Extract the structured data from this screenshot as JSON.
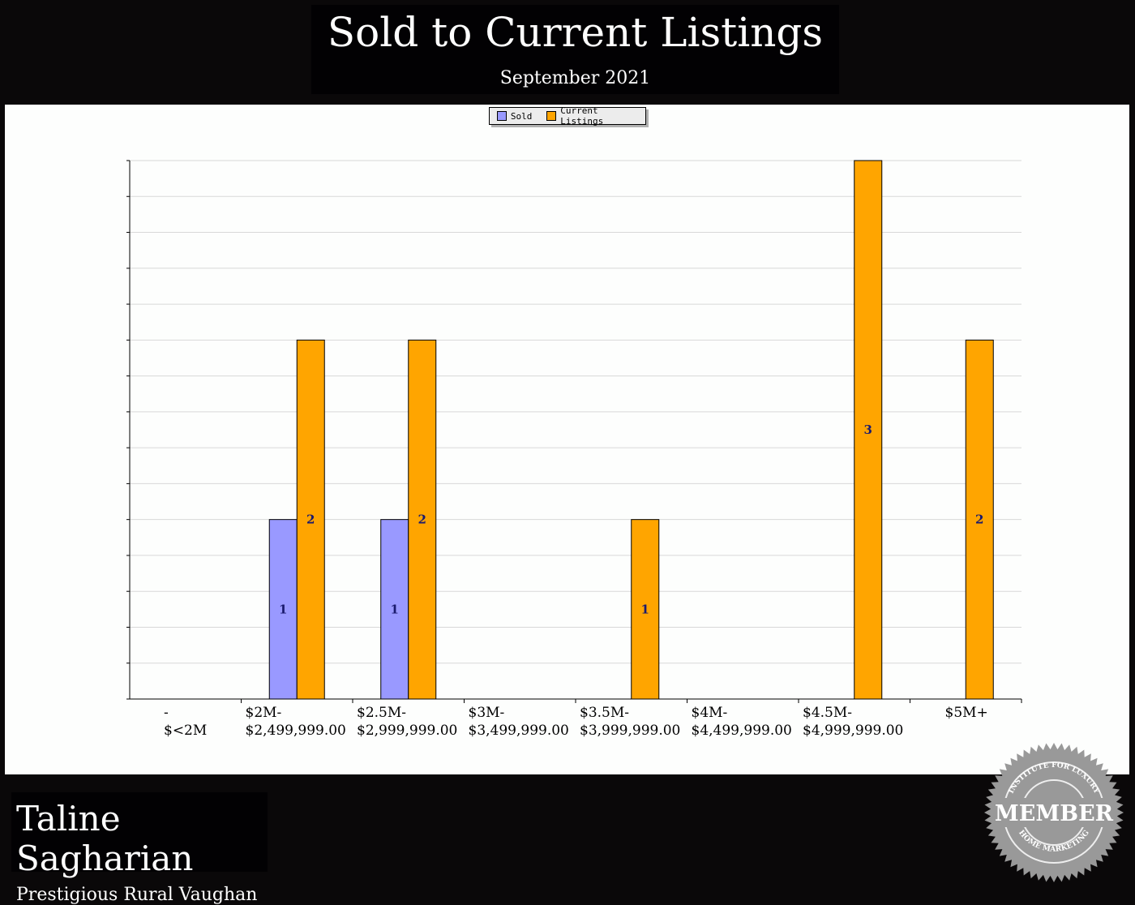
{
  "header": {
    "title": "Sold to Current Listings",
    "subtitle": "September 2021"
  },
  "footer": {
    "agent_name": "Taline Sagharian",
    "area": "Prestigious Rural Vaughan"
  },
  "badge": {
    "top": "INSTITUTE FOR LUXURY",
    "center": "MEMBER",
    "bottom": "HOME MARKETING"
  },
  "chart_data": {
    "type": "bar",
    "title": "Sold to Current Listings",
    "subtitle": "September 2021",
    "categories": [
      [
        "-",
        "$<2M"
      ],
      [
        "$2M-",
        "$2,499,999.00"
      ],
      [
        "$2.5M-",
        "$2,999,999.00"
      ],
      [
        "$3M-",
        "$3,499,999.00"
      ],
      [
        "$3.5M-",
        "$3,999,999.00"
      ],
      [
        "$4M-",
        "$4,499,999.00"
      ],
      [
        "$4.5M-",
        "$4,999,999.00"
      ],
      [
        "$5M+"
      ]
    ],
    "series": [
      {
        "name": "Sold",
        "color": "#9999ff",
        "values": [
          0,
          1,
          1,
          0,
          0,
          0,
          0,
          0
        ]
      },
      {
        "name": "Current Listings",
        "color": "#ffa500",
        "values": [
          0,
          2,
          2,
          0,
          1,
          0,
          3,
          2
        ]
      }
    ],
    "ylim": [
      0,
      3
    ],
    "grid": true,
    "legend": "top-center",
    "data_label_color": "#1a1a6e"
  }
}
